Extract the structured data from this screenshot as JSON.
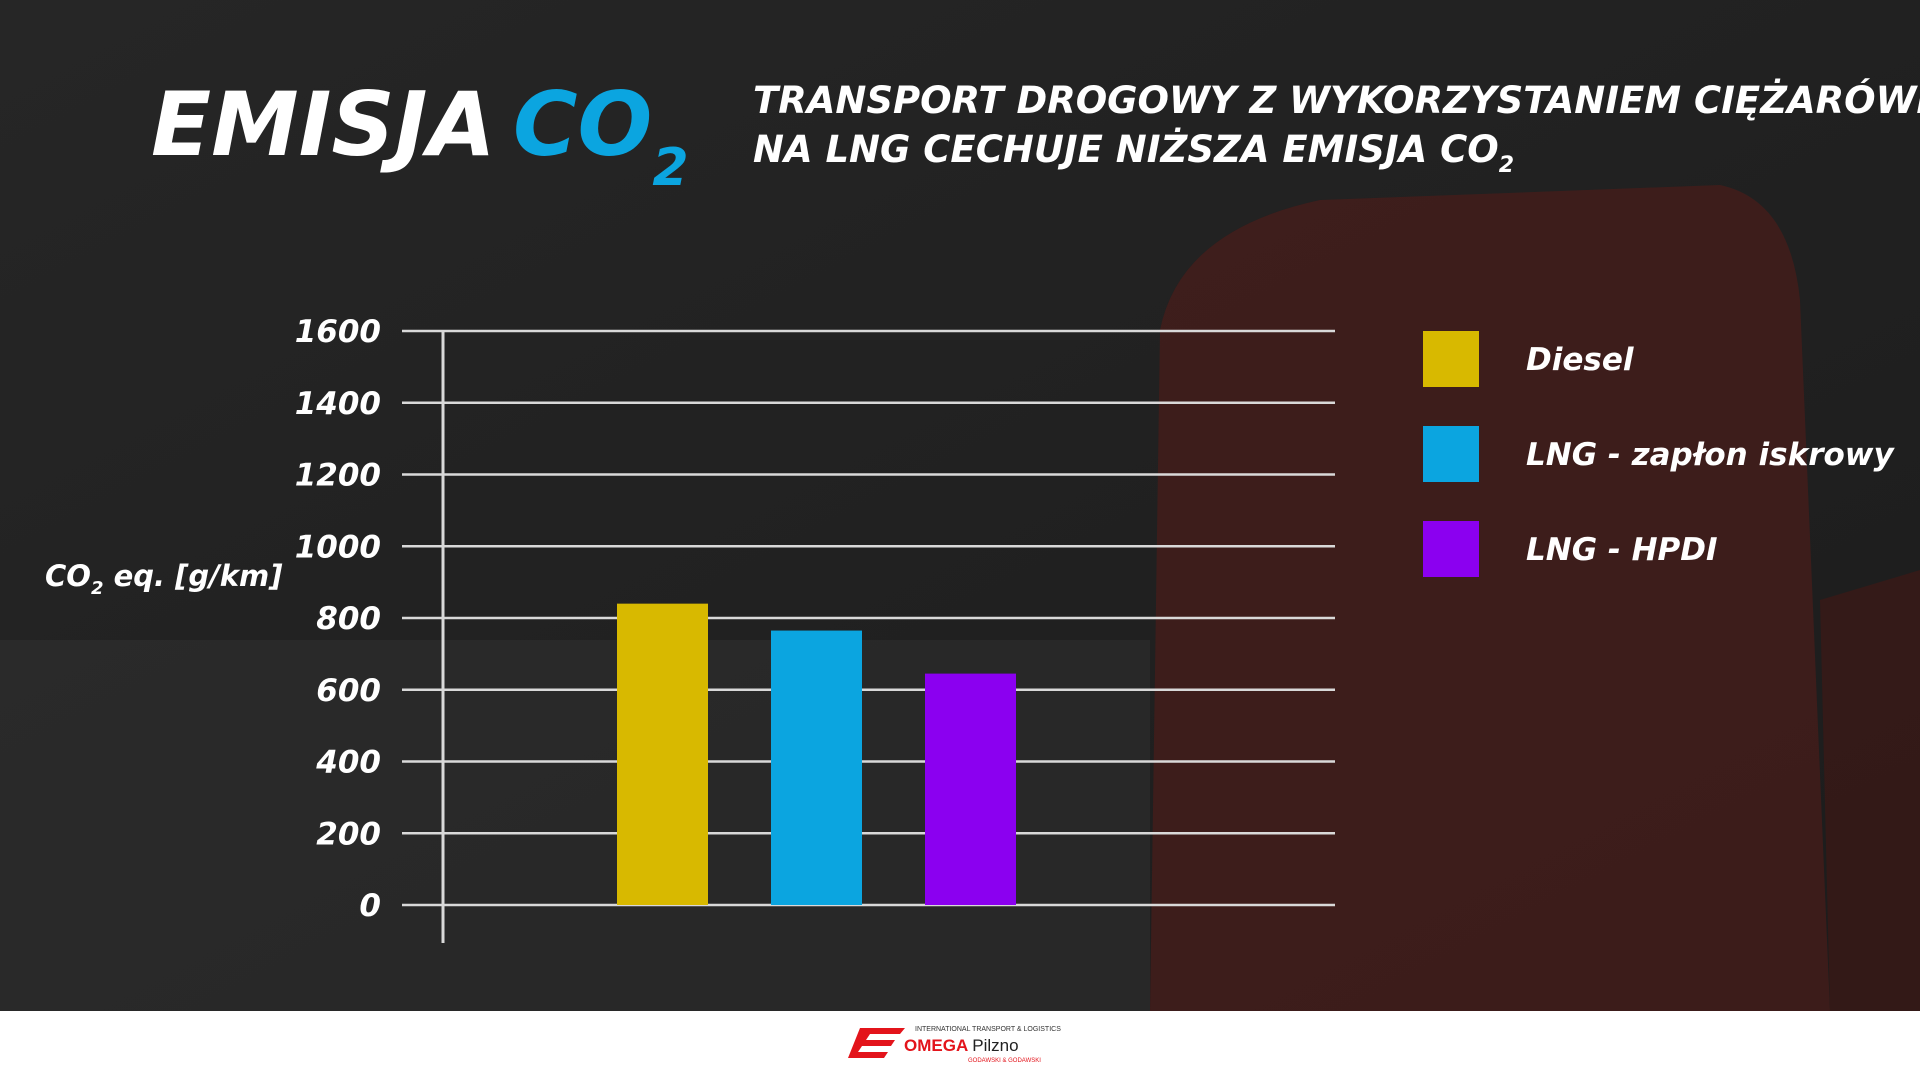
{
  "chart_data": {
    "type": "bar",
    "title": {
      "main": "EMISJA",
      "accent": "CO",
      "sub": "2"
    },
    "subtitle": {
      "line1": "TRANSPORT DROGOWY Z WYKORZYSTANIEM CIĘŻARÓWEK",
      "line2": "NA LNG CECHUJE NIŻSZA EMISJA CO",
      "sub": "2"
    },
    "y_label": {
      "main": "CO",
      "sub": "2",
      "rest": " eq. [g/km]"
    },
    "series": [
      {
        "name": "Diesel",
        "color": "#d8b900",
        "values": [
          840
        ]
      },
      {
        "name": "LNG - zapłon iskrowy",
        "color": "#0ba5e0",
        "values": [
          765
        ]
      },
      {
        "name": "LNG - HPDI",
        "color": "#8b00f0",
        "values": [
          645
        ]
      }
    ],
    "ylim": [
      0,
      1600
    ],
    "yticks": [
      0,
      200,
      400,
      600,
      800,
      1000,
      1200,
      1400,
      1600
    ],
    "grid": true
  },
  "footer": {
    "tagline": "INTERNATIONAL TRANSPORT & LOGISTICS",
    "brand": "OMEGA",
    "city": "Pilzno",
    "owners": "GODAWSKI & GODAWSKI"
  }
}
